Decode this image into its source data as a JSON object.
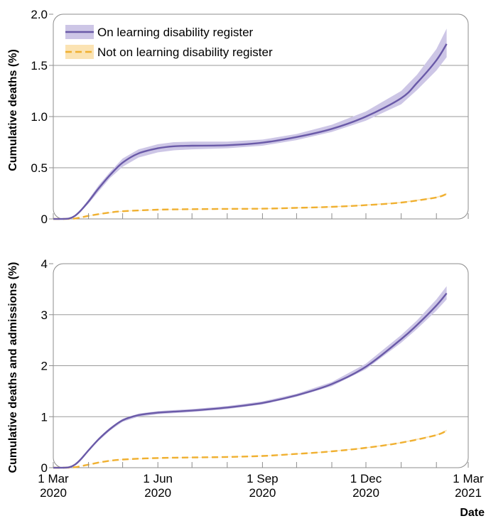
{
  "colors": {
    "register_line": "#6a5aa8",
    "register_band": "#cdc6e6",
    "not_register_line": "#f0b030",
    "not_register_band": "#fbe3b3",
    "grid": "#9a9a9a",
    "frame": "#8c8c8c"
  },
  "x_axis": {
    "label": "Date",
    "ticks": [
      {
        "date": "2020-03-01",
        "line1": "1 Mar",
        "line2": "2020"
      },
      {
        "date": "2020-06-01",
        "line1": "1 Jun",
        "line2": "2020"
      },
      {
        "date": "2020-09-01",
        "line1": "1 Sep",
        "line2": "2020"
      },
      {
        "date": "2020-12-01",
        "line1": "1 Dec",
        "line2": "2020"
      },
      {
        "date": "2021-03-01",
        "line1": "1 Mar",
        "line2": "2021"
      }
    ],
    "minor_ticks": [
      "2020-04-01",
      "2020-05-01",
      "2020-07-01",
      "2020-08-01",
      "2020-10-01",
      "2020-11-01",
      "2021-01-01",
      "2021-02-01"
    ],
    "range": [
      "2020-03-01",
      "2021-03-01"
    ]
  },
  "legend": {
    "position": "top-left",
    "entries": [
      {
        "series": 0,
        "label": "On learning disability register"
      },
      {
        "series": 1,
        "label": "Not on learning disability register"
      }
    ]
  },
  "chart_data": [
    {
      "type": "line",
      "ylabel": "Cumulative deaths (%)",
      "ylim": [
        0,
        2.0
      ],
      "yticks": [
        {
          "value": 0,
          "label": "0"
        },
        {
          "value": 0.5,
          "label": "0.5"
        },
        {
          "value": 1.0,
          "label": "1.0"
        },
        {
          "value": 1.5,
          "label": "1.5"
        },
        {
          "value": 2.0,
          "label": "2.0"
        }
      ],
      "grid": true,
      "series": [
        {
          "name": "On learning disability register",
          "style": "solid",
          "x": [
            "2020-03-01",
            "2020-03-10",
            "2020-03-15",
            "2020-03-20",
            "2020-03-25",
            "2020-04-01",
            "2020-04-10",
            "2020-04-20",
            "2020-05-01",
            "2020-05-15",
            "2020-06-01",
            "2020-06-15",
            "2020-07-01",
            "2020-08-01",
            "2020-09-01",
            "2020-10-01",
            "2020-11-01",
            "2020-12-01",
            "2021-01-01",
            "2021-01-15",
            "2021-02-01",
            "2021-02-10"
          ],
          "y": [
            0,
            0,
            0.005,
            0.03,
            0.08,
            0.17,
            0.3,
            0.43,
            0.55,
            0.64,
            0.69,
            0.71,
            0.715,
            0.72,
            0.745,
            0.8,
            0.88,
            1.0,
            1.18,
            1.33,
            1.55,
            1.71
          ],
          "lower": [
            0,
            0,
            0.004,
            0.025,
            0.07,
            0.15,
            0.27,
            0.4,
            0.51,
            0.6,
            0.65,
            0.67,
            0.68,
            0.69,
            0.715,
            0.77,
            0.85,
            0.96,
            1.12,
            1.26,
            1.45,
            1.58
          ],
          "upper": [
            0,
            0,
            0.006,
            0.035,
            0.09,
            0.19,
            0.33,
            0.46,
            0.59,
            0.68,
            0.73,
            0.75,
            0.755,
            0.755,
            0.775,
            0.83,
            0.92,
            1.05,
            1.25,
            1.41,
            1.66,
            1.86
          ]
        },
        {
          "name": "Not on learning disability register",
          "style": "dashed",
          "x": [
            "2020-03-01",
            "2020-03-10",
            "2020-03-20",
            "2020-04-01",
            "2020-04-15",
            "2020-05-01",
            "2020-06-01",
            "2020-07-01",
            "2020-08-01",
            "2020-09-01",
            "2020-10-01",
            "2020-11-01",
            "2020-12-01",
            "2021-01-01",
            "2021-02-01",
            "2021-02-10"
          ],
          "y": [
            0,
            0,
            0.004,
            0.03,
            0.055,
            0.075,
            0.09,
            0.095,
            0.098,
            0.1,
            0.108,
            0.118,
            0.135,
            0.16,
            0.21,
            0.245
          ],
          "lower": [
            0,
            0,
            0.003,
            0.028,
            0.052,
            0.072,
            0.087,
            0.092,
            0.095,
            0.097,
            0.104,
            0.114,
            0.13,
            0.155,
            0.204,
            0.238
          ],
          "upper": [
            0,
            0,
            0.005,
            0.032,
            0.058,
            0.078,
            0.093,
            0.098,
            0.101,
            0.103,
            0.112,
            0.122,
            0.14,
            0.166,
            0.216,
            0.252
          ]
        }
      ]
    },
    {
      "type": "line",
      "ylabel": "Cumulative deaths and admissions (%)",
      "ylim": [
        0,
        4
      ],
      "yticks": [
        {
          "value": 0,
          "label": "0"
        },
        {
          "value": 1,
          "label": "1"
        },
        {
          "value": 2,
          "label": "2"
        },
        {
          "value": 3,
          "label": "3"
        },
        {
          "value": 4,
          "label": "4"
        }
      ],
      "grid": true,
      "series": [
        {
          "name": "On learning disability register",
          "style": "solid",
          "x": [
            "2020-03-01",
            "2020-03-10",
            "2020-03-15",
            "2020-03-20",
            "2020-03-25",
            "2020-04-01",
            "2020-04-10",
            "2020-04-20",
            "2020-05-01",
            "2020-05-15",
            "2020-06-01",
            "2020-06-15",
            "2020-07-01",
            "2020-08-01",
            "2020-09-01",
            "2020-10-01",
            "2020-11-01",
            "2020-12-01",
            "2021-01-01",
            "2021-01-15",
            "2021-02-01",
            "2021-02-10"
          ],
          "y": [
            0,
            0,
            0.01,
            0.06,
            0.16,
            0.34,
            0.56,
            0.76,
            0.93,
            1.03,
            1.08,
            1.1,
            1.12,
            1.18,
            1.27,
            1.42,
            1.64,
            1.98,
            2.52,
            2.8,
            3.18,
            3.42
          ],
          "lower": [
            0,
            0,
            0.009,
            0.055,
            0.15,
            0.32,
            0.53,
            0.73,
            0.9,
            1.0,
            1.05,
            1.07,
            1.09,
            1.15,
            1.24,
            1.39,
            1.6,
            1.93,
            2.45,
            2.72,
            3.08,
            3.3
          ],
          "upper": [
            0,
            0,
            0.011,
            0.065,
            0.17,
            0.36,
            0.59,
            0.79,
            0.96,
            1.06,
            1.11,
            1.13,
            1.15,
            1.21,
            1.3,
            1.45,
            1.68,
            2.04,
            2.6,
            2.89,
            3.3,
            3.56
          ]
        },
        {
          "name": "Not on learning disability register",
          "style": "dashed",
          "x": [
            "2020-03-01",
            "2020-03-10",
            "2020-03-20",
            "2020-04-01",
            "2020-04-15",
            "2020-05-01",
            "2020-06-01",
            "2020-07-01",
            "2020-08-01",
            "2020-09-01",
            "2020-10-01",
            "2020-11-01",
            "2020-12-01",
            "2021-01-01",
            "2021-02-01",
            "2021-02-10"
          ],
          "y": [
            0,
            0,
            0.01,
            0.06,
            0.12,
            0.16,
            0.19,
            0.2,
            0.21,
            0.23,
            0.27,
            0.32,
            0.39,
            0.49,
            0.64,
            0.73
          ],
          "lower": [
            0,
            0,
            0.009,
            0.057,
            0.115,
            0.155,
            0.185,
            0.195,
            0.205,
            0.225,
            0.264,
            0.313,
            0.382,
            0.48,
            0.628,
            0.716
          ],
          "upper": [
            0,
            0,
            0.011,
            0.063,
            0.125,
            0.165,
            0.195,
            0.205,
            0.215,
            0.235,
            0.276,
            0.327,
            0.398,
            0.5,
            0.652,
            0.744
          ]
        }
      ]
    }
  ]
}
